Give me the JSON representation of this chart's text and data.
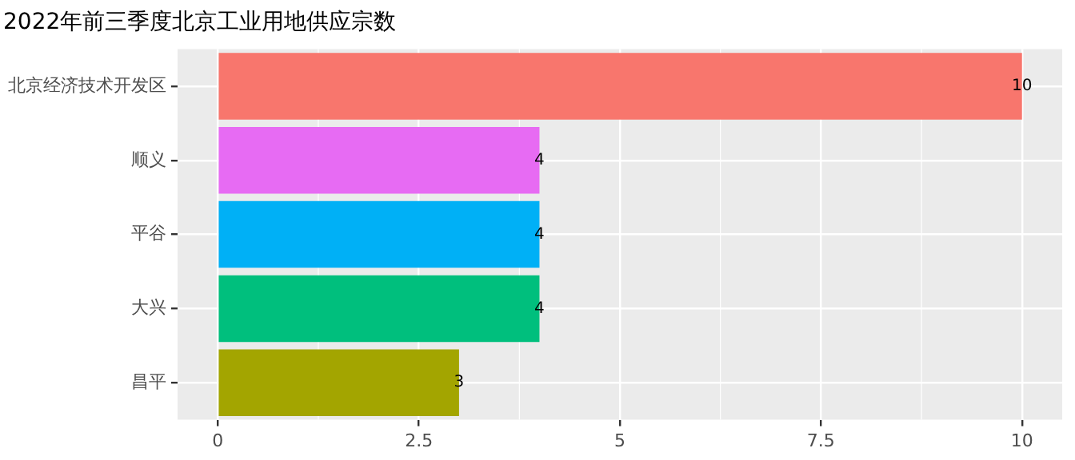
{
  "chart_data": {
    "type": "bar",
    "orientation": "horizontal",
    "title": "2022年前三季度北京工业用地供应宗数",
    "categories": [
      "北京经济技术开发区",
      "顺义",
      "平谷",
      "大兴",
      "昌平"
    ],
    "values": [
      10,
      4,
      4,
      4,
      3
    ],
    "colors": [
      "#f8766d",
      "#e76bf3",
      "#00b0f6",
      "#00bf7d",
      "#a3a500"
    ],
    "xlim": [
      -0.5,
      10.5
    ],
    "xticks": [
      0,
      2.5,
      5,
      7.5,
      10
    ],
    "data_labels": true,
    "grid": true,
    "legend": false
  }
}
